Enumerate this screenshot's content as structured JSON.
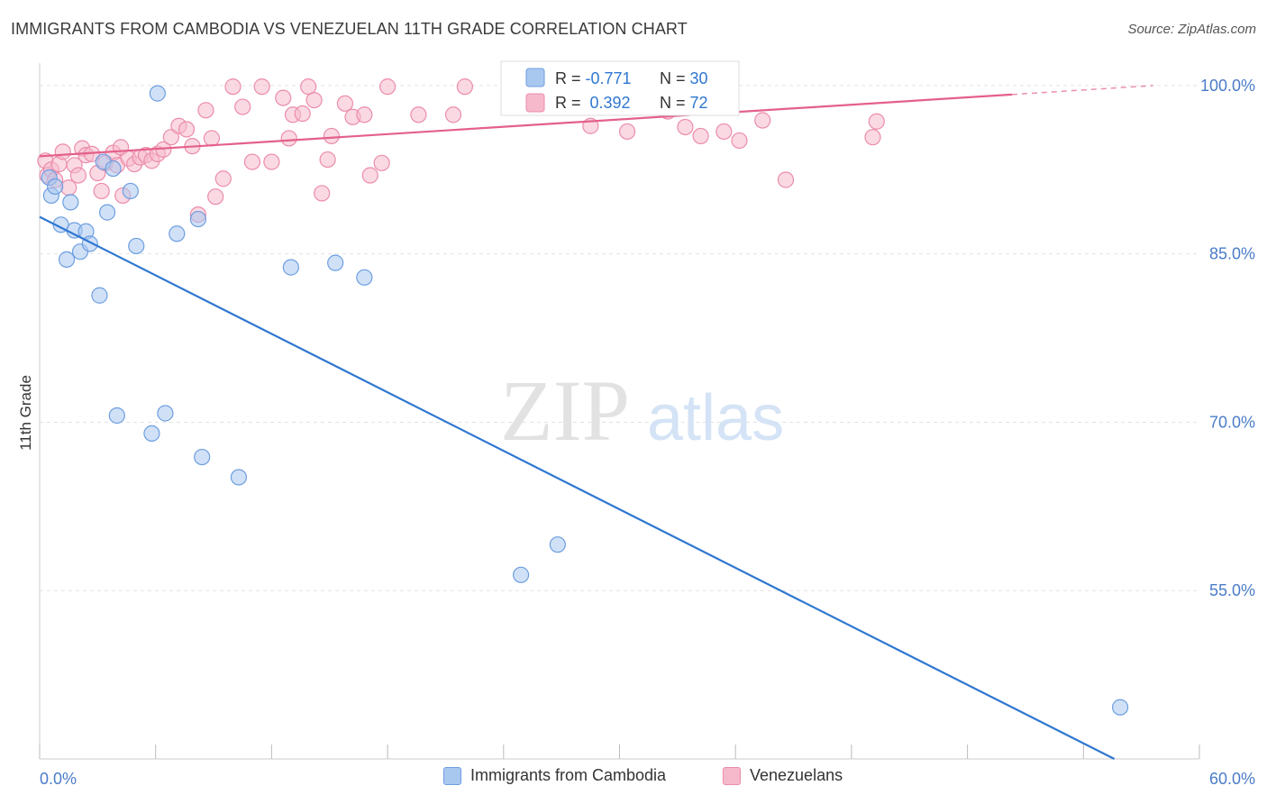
{
  "title": "IMMIGRANTS FROM CAMBODIA VS VENEZUELAN 11TH GRADE CORRELATION CHART",
  "source": "Source: ZipAtlas.com",
  "watermark": {
    "zip": "ZIP",
    "atlas": "atlas"
  },
  "colors": {
    "blue_fill": "#a9c8f0",
    "blue_stroke": "#6d9ee0",
    "blue_line": "#2f77d0",
    "pink_fill": "#f6b9cc",
    "pink_stroke": "#ec8cab",
    "pink_line": "#e4608a",
    "axis_label": "#4a7cc9",
    "grid": "#e3e3e3"
  },
  "legend_top": {
    "rows": [
      {
        "r_label": "R = ",
        "r_value": "-0.771",
        "n_label": "N = ",
        "n_value": "30",
        "series": "blue"
      },
      {
        "r_label": "R = ",
        "r_value": " 0.392",
        "n_label": "N = ",
        "n_value": "72",
        "series": "pink"
      }
    ]
  },
  "chart_data": {
    "type": "scatter",
    "xlabel": "",
    "ylabel": "11th Grade",
    "xlim": [
      0,
      60
    ],
    "ylim": [
      40,
      102
    ],
    "x_tick_labels": [
      "0.0%",
      "60.0%"
    ],
    "y_ticks": [
      55,
      70,
      85,
      100
    ],
    "y_tick_labels": [
      "55.0%",
      "70.0%",
      "85.0%",
      "100.0%"
    ],
    "grid": true,
    "legend_placement": "bottom",
    "series": [
      {
        "name": "Immigrants from Cambodia",
        "color": "blue",
        "trend": {
          "x0": 0,
          "y0": 88.3,
          "x1": 55.6,
          "y1": 40.0
        },
        "points": [
          [
            0.5,
            91.8
          ],
          [
            0.6,
            90.2
          ],
          [
            0.8,
            91.0
          ],
          [
            1.1,
            87.6
          ],
          [
            1.4,
            84.5
          ],
          [
            1.6,
            89.6
          ],
          [
            1.8,
            87.1
          ],
          [
            2.1,
            85.2
          ],
          [
            2.4,
            87.0
          ],
          [
            2.6,
            85.9
          ],
          [
            3.1,
            81.3
          ],
          [
            3.3,
            93.2
          ],
          [
            3.5,
            88.7
          ],
          [
            3.8,
            92.6
          ],
          [
            4.0,
            70.6
          ],
          [
            4.7,
            90.6
          ],
          [
            5.0,
            85.7
          ],
          [
            5.8,
            69.0
          ],
          [
            6.1,
            99.3
          ],
          [
            6.5,
            70.8
          ],
          [
            7.1,
            86.8
          ],
          [
            8.2,
            88.1
          ],
          [
            8.4,
            66.9
          ],
          [
            10.3,
            65.1
          ],
          [
            13.0,
            83.8
          ],
          [
            15.3,
            84.2
          ],
          [
            16.8,
            82.9
          ],
          [
            24.9,
            56.4
          ],
          [
            26.8,
            59.1
          ],
          [
            55.9,
            44.6
          ]
        ]
      },
      {
        "name": "Venezuelans",
        "color": "pink",
        "trend": {
          "x0": 0,
          "y0": 93.7,
          "x1": 50.3,
          "y1": 99.2,
          "dash_to_x": 57.6,
          "dash_to_y": 100.0
        },
        "points": [
          [
            0.3,
            93.3
          ],
          [
            0.4,
            92.0
          ],
          [
            0.6,
            92.5
          ],
          [
            0.8,
            91.6
          ],
          [
            1.0,
            93.0
          ],
          [
            1.2,
            94.1
          ],
          [
            1.5,
            90.9
          ],
          [
            1.8,
            92.9
          ],
          [
            2.0,
            92.0
          ],
          [
            2.2,
            94.4
          ],
          [
            2.4,
            93.8
          ],
          [
            2.7,
            93.9
          ],
          [
            3.0,
            92.2
          ],
          [
            3.2,
            90.6
          ],
          [
            3.4,
            93.1
          ],
          [
            3.8,
            94.0
          ],
          [
            4.0,
            92.9
          ],
          [
            4.2,
            94.5
          ],
          [
            4.3,
            90.2
          ],
          [
            4.6,
            93.5
          ],
          [
            4.9,
            93.0
          ],
          [
            5.2,
            93.6
          ],
          [
            5.5,
            93.8
          ],
          [
            5.8,
            93.3
          ],
          [
            6.1,
            93.9
          ],
          [
            6.4,
            94.3
          ],
          [
            6.8,
            95.4
          ],
          [
            7.2,
            96.4
          ],
          [
            7.6,
            96.1
          ],
          [
            7.9,
            94.6
          ],
          [
            8.2,
            88.5
          ],
          [
            8.6,
            97.8
          ],
          [
            8.9,
            95.3
          ],
          [
            9.1,
            90.1
          ],
          [
            9.5,
            91.7
          ],
          [
            10.0,
            99.9
          ],
          [
            10.5,
            98.1
          ],
          [
            11.0,
            93.2
          ],
          [
            11.5,
            99.9
          ],
          [
            12.0,
            93.2
          ],
          [
            12.6,
            98.9
          ],
          [
            12.9,
            95.3
          ],
          [
            13.1,
            97.4
          ],
          [
            13.6,
            97.5
          ],
          [
            13.9,
            99.9
          ],
          [
            14.2,
            98.7
          ],
          [
            14.6,
            90.4
          ],
          [
            14.9,
            93.4
          ],
          [
            15.1,
            95.5
          ],
          [
            15.8,
            98.4
          ],
          [
            16.2,
            97.2
          ],
          [
            16.8,
            97.4
          ],
          [
            17.1,
            92.0
          ],
          [
            17.7,
            93.1
          ],
          [
            18.0,
            99.9
          ],
          [
            19.6,
            97.4
          ],
          [
            21.4,
            97.4
          ],
          [
            22.0,
            99.9
          ],
          [
            25.2,
            98.5
          ],
          [
            27.0,
            99.0
          ],
          [
            28.5,
            96.4
          ],
          [
            30.4,
            95.9
          ],
          [
            31.7,
            98.9
          ],
          [
            32.5,
            97.7
          ],
          [
            33.4,
            96.3
          ],
          [
            34.2,
            95.5
          ],
          [
            35.4,
            95.9
          ],
          [
            36.2,
            95.1
          ],
          [
            37.4,
            96.9
          ],
          [
            38.6,
            91.6
          ],
          [
            43.1,
            95.4
          ],
          [
            43.3,
            96.8
          ]
        ]
      }
    ]
  }
}
